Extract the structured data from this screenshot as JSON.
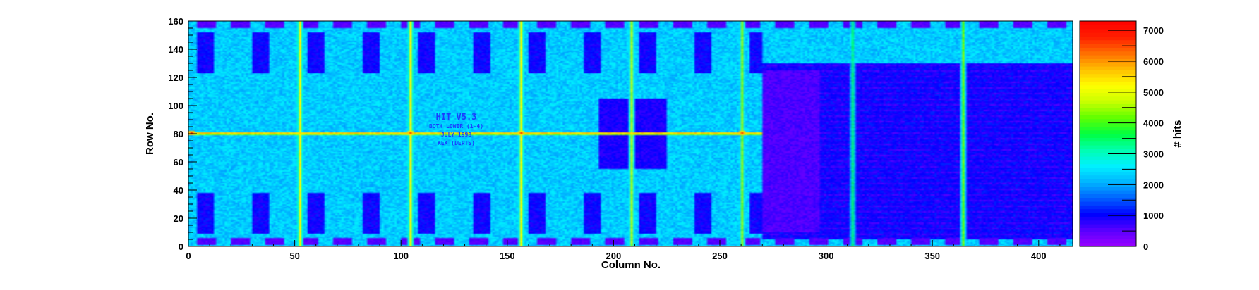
{
  "chart_data": {
    "type": "heatmap",
    "xlabel": "Column No.",
    "ylabel": "Row No.",
    "zlabel": "# hits",
    "xlim": [
      0,
      416
    ],
    "ylim": [
      0,
      160
    ],
    "zlim": [
      0,
      7300
    ],
    "x_ticks": [
      0,
      50,
      100,
      150,
      200,
      250,
      300,
      350,
      400
    ],
    "y_ticks": [
      0,
      20,
      40,
      60,
      80,
      100,
      120,
      140,
      160
    ],
    "z_ticks": [
      0,
      1000,
      2000,
      3000,
      4000,
      5000,
      6000,
      7000
    ],
    "palette": [
      "#9a00ff",
      "#5a00ff",
      "#0000ff",
      "#0060ff",
      "#00b4ff",
      "#00f0ff",
      "#00ffb0",
      "#00ff40",
      "#60ff00",
      "#c8ff00",
      "#ffff00",
      "#ffc000",
      "#ff7000",
      "#ff2000",
      "#ff0000"
    ],
    "background_level": 2300,
    "dense_region": {
      "x": [
        270,
        416
      ],
      "y": [
        5,
        130
      ],
      "level": 1000
    },
    "dense_core": {
      "x": [
        270,
        297
      ],
      "y": [
        10,
        125
      ],
      "level": 600
    },
    "hot_columns": [
      {
        "x": 52,
        "level": 5200
      },
      {
        "x": 104,
        "level": 5200
      },
      {
        "x": 156,
        "level": 5000
      },
      {
        "x": 208,
        "level": 4600
      },
      {
        "x": 260,
        "level": 4400
      },
      {
        "x": 312,
        "level": 3400
      },
      {
        "x": 364,
        "level": 4200
      }
    ],
    "hot_row": {
      "y": 80,
      "x": [
        0,
        270
      ],
      "level": 5600
    },
    "hot_spots": [
      {
        "x": 1,
        "y": 80,
        "level": 7200
      },
      {
        "x": 104,
        "y": 80,
        "level": 6800
      },
      {
        "x": 156,
        "y": 80,
        "level": 6800
      },
      {
        "x": 260,
        "y": 80,
        "level": 7000
      }
    ],
    "pad_rows": [
      {
        "y": 3,
        "level": 400
      },
      {
        "y": 157,
        "level": 400
      }
    ],
    "central_block": {
      "x": [
        193,
        225
      ],
      "y": [
        55,
        105
      ],
      "level": 900
    },
    "chip_text": [
      "HIT V5.3",
      "BOTH LOWER (1-4)",
      "JULY 1998",
      "KEK (DEPTS)"
    ]
  }
}
